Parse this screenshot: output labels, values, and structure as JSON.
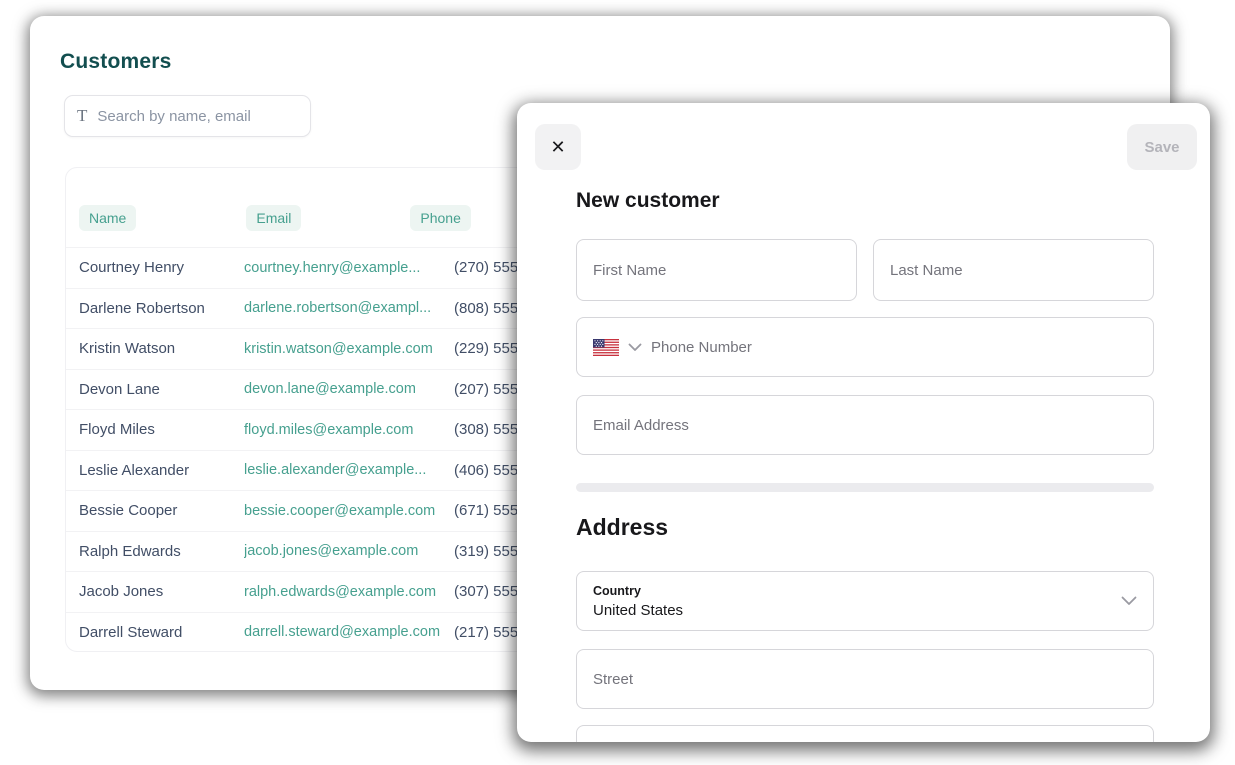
{
  "page": {
    "title": "Customers",
    "search": {
      "placeholder": "Search by name, email",
      "icon_glyph": "T"
    }
  },
  "table": {
    "columns": [
      "Name",
      "Email",
      "Phone"
    ],
    "rows": [
      {
        "name": "Courtney Henry",
        "email": "courtney.henry@example...",
        "phone": "(270) 555"
      },
      {
        "name": "Darlene Robertson",
        "email": "darlene.robertson@exampl...",
        "phone": "(808) 555"
      },
      {
        "name": "Kristin Watson",
        "email": "kristin.watson@example.com",
        "phone": "(229) 555-"
      },
      {
        "name": "Devon Lane",
        "email": "devon.lane@example.com",
        "phone": "(207) 555"
      },
      {
        "name": "Floyd Miles",
        "email": "floyd.miles@example.com",
        "phone": "(308) 555"
      },
      {
        "name": "Leslie Alexander",
        "email": "leslie.alexander@example...",
        "phone": "(406) 555"
      },
      {
        "name": "Bessie Cooper",
        "email": "bessie.cooper@example.com",
        "phone": "(671) 555-"
      },
      {
        "name": "Ralph Edwards",
        "email": "jacob.jones@example.com",
        "phone": "(319) 555-"
      },
      {
        "name": "Jacob Jones",
        "email": "ralph.edwards@example.com",
        "phone": "(307) 555"
      },
      {
        "name": "Darrell Steward",
        "email": "darrell.steward@example.com",
        "phone": "(217) 555-"
      }
    ]
  },
  "modal": {
    "close_glyph": "✕",
    "save_label": "Save",
    "title": "New customer",
    "first_name_placeholder": "First Name",
    "last_name_placeholder": "Last Name",
    "phone_placeholder": "Phone Number",
    "email_placeholder": "Email Address",
    "address_section_title": "Address",
    "country_label": "Country",
    "country_value": "United States",
    "street_placeholder": "Street"
  },
  "colors": {
    "accent_teal": "#46a08f",
    "heading_teal": "#124e4f",
    "row_text": "#414e66",
    "badge_bg": "#edf5f2",
    "modal_text": "#18181b",
    "placeholder_gray": "#74747c",
    "disabled_button_text": "#b4b4ba"
  }
}
